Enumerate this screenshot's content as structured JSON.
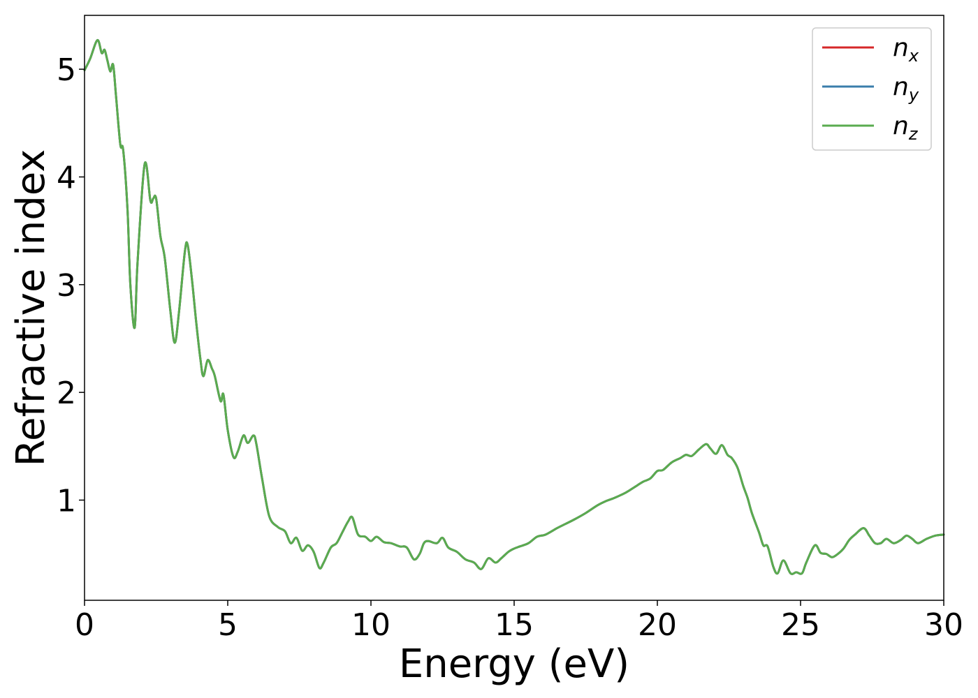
{
  "chart_data": {
    "type": "line",
    "title": "",
    "xlabel": "Energy (eV)",
    "ylabel": "Refractive index",
    "xlim": [
      0,
      30
    ],
    "ylim": [
      0.07,
      5.5
    ],
    "xticks": [
      0,
      5,
      10,
      15,
      20,
      25,
      30
    ],
    "xtick_labels": [
      "0",
      "5",
      "10",
      "15",
      "20",
      "25",
      "30"
    ],
    "yticks": [
      1,
      2,
      3,
      4,
      5
    ],
    "ytick_labels": [
      "1",
      "2",
      "3",
      "4",
      "5"
    ],
    "grid": false,
    "legend_position": "top-right",
    "x": [
      0,
      0.2,
      0.45,
      0.6,
      0.7,
      0.8,
      0.9,
      1.0,
      1.1,
      1.25,
      1.35,
      1.5,
      1.6,
      1.75,
      1.85,
      2.1,
      2.3,
      2.4,
      2.5,
      2.65,
      2.8,
      3.0,
      3.15,
      3.3,
      3.5,
      3.6,
      3.75,
      3.9,
      4.05,
      4.15,
      4.3,
      4.45,
      4.55,
      4.75,
      4.85,
      5.0,
      5.2,
      5.35,
      5.55,
      5.7,
      5.9,
      6.0,
      6.2,
      6.45,
      6.75,
      7.0,
      7.2,
      7.4,
      7.6,
      7.8,
      8.0,
      8.2,
      8.35,
      8.6,
      8.8,
      9.0,
      9.2,
      9.35,
      9.55,
      9.8,
      10.0,
      10.2,
      10.45,
      10.7,
      11.0,
      11.25,
      11.5,
      11.7,
      11.85,
      12.0,
      12.3,
      12.5,
      12.7,
      13.0,
      13.3,
      13.6,
      13.85,
      14.1,
      14.35,
      14.55,
      14.8,
      15.0,
      15.2,
      15.5,
      15.8,
      16.1,
      16.5,
      16.8,
      17.1,
      17.5,
      17.9,
      18.2,
      18.5,
      18.9,
      19.2,
      19.5,
      19.75,
      20.0,
      20.2,
      20.5,
      20.8,
      21.0,
      21.2,
      21.45,
      21.7,
      21.85,
      22.05,
      22.25,
      22.45,
      22.6,
      22.8,
      23.0,
      23.15,
      23.3,
      23.55,
      23.7,
      23.85,
      24.05,
      24.2,
      24.4,
      24.65,
      24.85,
      25.05,
      25.2,
      25.5,
      25.7,
      25.9,
      26.1,
      26.3,
      26.5,
      26.7,
      26.9,
      27.2,
      27.4,
      27.6,
      27.8,
      28.0,
      28.25,
      28.5,
      28.7,
      28.9,
      29.1,
      29.4,
      29.7,
      30.0
    ],
    "series": [
      {
        "name": "n_x",
        "color": "#d62728",
        "values": [
          4.99,
          5.1,
          5.27,
          5.15,
          5.18,
          5.08,
          4.98,
          5.04,
          4.75,
          4.3,
          4.25,
          3.7,
          3.0,
          2.6,
          3.2,
          4.12,
          3.78,
          3.8,
          3.8,
          3.45,
          3.25,
          2.75,
          2.46,
          2.75,
          3.3,
          3.37,
          3.05,
          2.65,
          2.3,
          2.15,
          2.3,
          2.22,
          2.15,
          1.92,
          1.98,
          1.65,
          1.4,
          1.45,
          1.6,
          1.53,
          1.6,
          1.52,
          1.2,
          0.85,
          0.75,
          0.71,
          0.6,
          0.65,
          0.53,
          0.58,
          0.52,
          0.37,
          0.42,
          0.56,
          0.6,
          0.7,
          0.8,
          0.84,
          0.68,
          0.66,
          0.62,
          0.66,
          0.61,
          0.6,
          0.57,
          0.56,
          0.45,
          0.5,
          0.6,
          0.62,
          0.6,
          0.65,
          0.56,
          0.52,
          0.45,
          0.42,
          0.36,
          0.46,
          0.42,
          0.46,
          0.52,
          0.55,
          0.57,
          0.6,
          0.66,
          0.68,
          0.74,
          0.78,
          0.82,
          0.88,
          0.95,
          0.99,
          1.02,
          1.07,
          1.12,
          1.17,
          1.2,
          1.27,
          1.28,
          1.35,
          1.39,
          1.42,
          1.41,
          1.47,
          1.52,
          1.48,
          1.43,
          1.51,
          1.42,
          1.39,
          1.3,
          1.13,
          1.02,
          0.88,
          0.7,
          0.58,
          0.57,
          0.38,
          0.32,
          0.44,
          0.32,
          0.33,
          0.32,
          0.42,
          0.58,
          0.51,
          0.5,
          0.47,
          0.5,
          0.55,
          0.63,
          0.68,
          0.74,
          0.67,
          0.6,
          0.6,
          0.64,
          0.6,
          0.63,
          0.67,
          0.64,
          0.6,
          0.64,
          0.67,
          0.68
        ]
      },
      {
        "name": "n_y",
        "color": "#3a7dab",
        "values": [
          4.99,
          5.1,
          5.27,
          5.15,
          5.18,
          5.08,
          4.98,
          5.04,
          4.75,
          4.3,
          4.25,
          3.7,
          3.0,
          2.6,
          3.2,
          4.12,
          3.78,
          3.8,
          3.8,
          3.45,
          3.25,
          2.75,
          2.46,
          2.75,
          3.3,
          3.37,
          3.05,
          2.65,
          2.3,
          2.15,
          2.3,
          2.22,
          2.15,
          1.92,
          1.98,
          1.65,
          1.4,
          1.45,
          1.6,
          1.53,
          1.6,
          1.52,
          1.2,
          0.85,
          0.75,
          0.71,
          0.6,
          0.65,
          0.53,
          0.58,
          0.52,
          0.37,
          0.42,
          0.56,
          0.6,
          0.7,
          0.8,
          0.84,
          0.68,
          0.66,
          0.62,
          0.66,
          0.61,
          0.6,
          0.57,
          0.56,
          0.45,
          0.5,
          0.6,
          0.62,
          0.6,
          0.65,
          0.56,
          0.52,
          0.45,
          0.42,
          0.36,
          0.46,
          0.42,
          0.46,
          0.52,
          0.55,
          0.57,
          0.6,
          0.66,
          0.68,
          0.74,
          0.78,
          0.82,
          0.88,
          0.95,
          0.99,
          1.02,
          1.07,
          1.12,
          1.17,
          1.2,
          1.27,
          1.28,
          1.35,
          1.39,
          1.42,
          1.41,
          1.47,
          1.52,
          1.48,
          1.43,
          1.51,
          1.42,
          1.39,
          1.3,
          1.13,
          1.02,
          0.88,
          0.7,
          0.58,
          0.57,
          0.38,
          0.32,
          0.44,
          0.32,
          0.33,
          0.32,
          0.42,
          0.58,
          0.51,
          0.5,
          0.47,
          0.5,
          0.55,
          0.63,
          0.68,
          0.74,
          0.67,
          0.6,
          0.6,
          0.64,
          0.6,
          0.63,
          0.67,
          0.64,
          0.6,
          0.64,
          0.67,
          0.68
        ]
      },
      {
        "name": "n_z",
        "color": "#5aab4f",
        "values": [
          4.99,
          5.1,
          5.27,
          5.15,
          5.18,
          5.08,
          4.98,
          5.04,
          4.75,
          4.3,
          4.25,
          3.7,
          3.0,
          2.6,
          3.2,
          4.12,
          3.78,
          3.8,
          3.8,
          3.45,
          3.25,
          2.75,
          2.46,
          2.75,
          3.3,
          3.37,
          3.05,
          2.65,
          2.3,
          2.15,
          2.3,
          2.22,
          2.15,
          1.92,
          1.98,
          1.65,
          1.4,
          1.45,
          1.6,
          1.53,
          1.6,
          1.52,
          1.2,
          0.85,
          0.75,
          0.71,
          0.6,
          0.65,
          0.53,
          0.58,
          0.52,
          0.37,
          0.42,
          0.56,
          0.6,
          0.7,
          0.8,
          0.84,
          0.68,
          0.66,
          0.62,
          0.66,
          0.61,
          0.6,
          0.57,
          0.56,
          0.45,
          0.5,
          0.6,
          0.62,
          0.6,
          0.65,
          0.56,
          0.52,
          0.45,
          0.42,
          0.36,
          0.46,
          0.42,
          0.46,
          0.52,
          0.55,
          0.57,
          0.6,
          0.66,
          0.68,
          0.74,
          0.78,
          0.82,
          0.88,
          0.95,
          0.99,
          1.02,
          1.07,
          1.12,
          1.17,
          1.2,
          1.27,
          1.28,
          1.35,
          1.39,
          1.42,
          1.41,
          1.47,
          1.52,
          1.48,
          1.43,
          1.51,
          1.42,
          1.39,
          1.3,
          1.13,
          1.02,
          0.88,
          0.7,
          0.58,
          0.57,
          0.38,
          0.32,
          0.44,
          0.32,
          0.33,
          0.32,
          0.42,
          0.58,
          0.51,
          0.5,
          0.47,
          0.5,
          0.55,
          0.63,
          0.68,
          0.74,
          0.67,
          0.6,
          0.6,
          0.64,
          0.6,
          0.63,
          0.67,
          0.64,
          0.6,
          0.64,
          0.67,
          0.68
        ]
      }
    ],
    "legend": [
      {
        "base": "n",
        "sub": "x",
        "color": "#d62728"
      },
      {
        "base": "n",
        "sub": "y",
        "color": "#3a7dab"
      },
      {
        "base": "n",
        "sub": "z",
        "color": "#5aab4f"
      }
    ]
  }
}
